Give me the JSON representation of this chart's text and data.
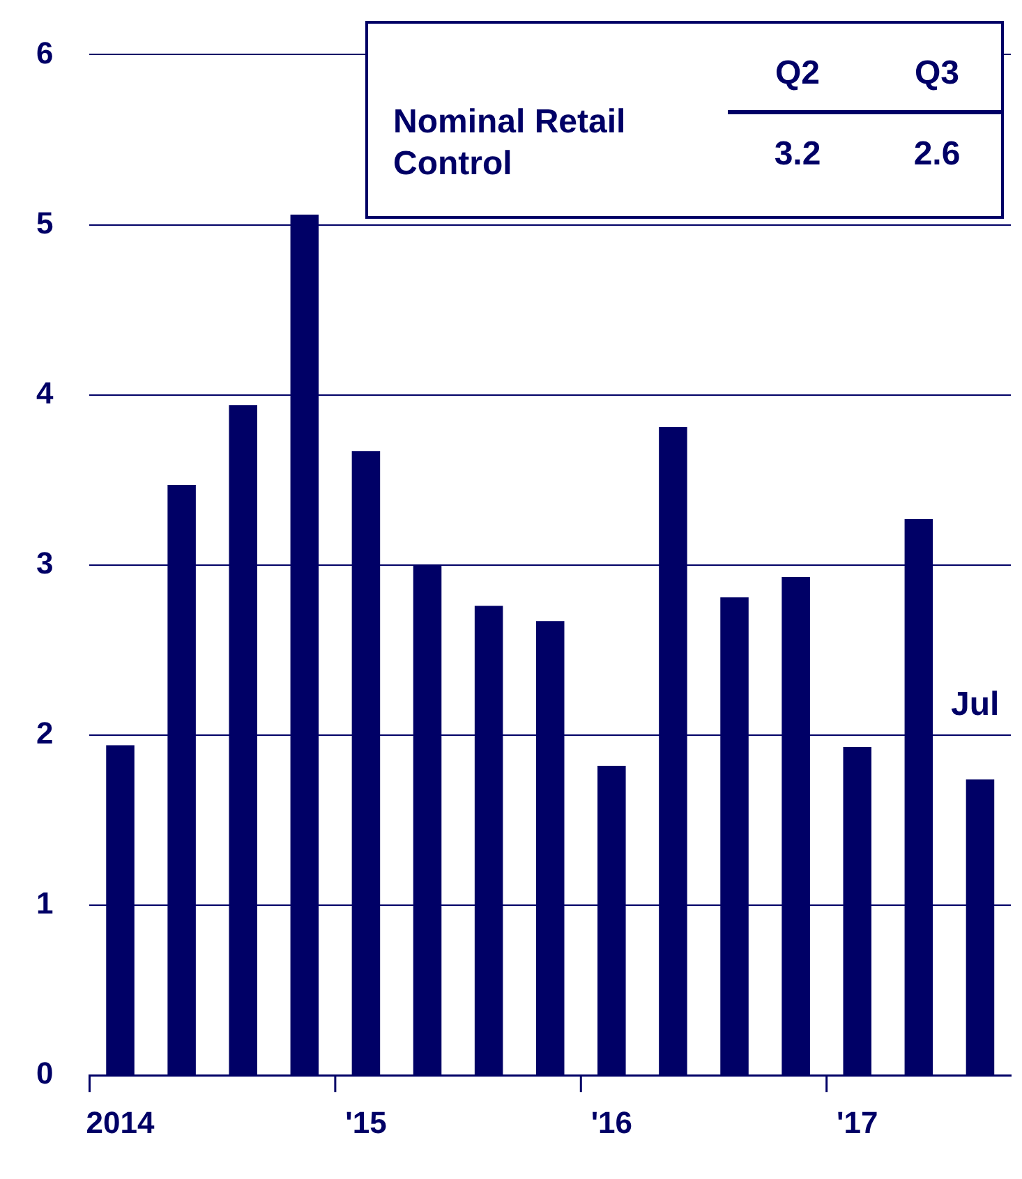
{
  "chart_data": {
    "type": "bar",
    "categories": [
      "2014",
      null,
      null,
      null,
      "'15",
      null,
      null,
      null,
      "'16",
      null,
      null,
      null,
      "'17",
      null,
      null
    ],
    "values": [
      1.94,
      3.47,
      3.94,
      5.06,
      3.67,
      3.0,
      2.76,
      2.67,
      1.82,
      3.81,
      2.81,
      2.93,
      1.93,
      3.27,
      1.74
    ],
    "color": "#000066",
    "ylim": [
      0,
      6
    ],
    "yticks": [
      0,
      1,
      2,
      3,
      4,
      5,
      6
    ],
    "grid": "y",
    "legend": false,
    "annotations": [
      "Nominal Retail Control",
      "Q2",
      "Q3",
      "3.2",
      "2.6",
      "Jul"
    ]
  }
}
